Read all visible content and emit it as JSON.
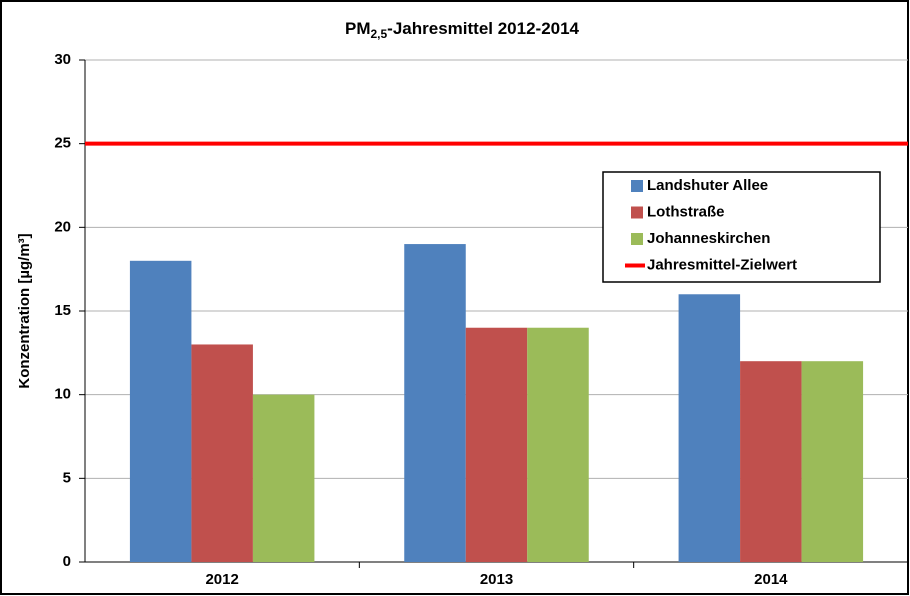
{
  "chart_data": {
    "type": "bar",
    "title": [
      "PM",
      "2,5",
      "-Jahresmittel  2012-2014"
    ],
    "y_label": "Konzentration [µg/m³]",
    "categories": [
      "2012",
      "2013",
      "2014"
    ],
    "series": [
      {
        "name": "Landshuter Allee",
        "color": "#4f81bd",
        "values": [
          18,
          19,
          16
        ]
      },
      {
        "name": "Lothstraße",
        "color": "#c0504d",
        "values": [
          13,
          14,
          12
        ]
      },
      {
        "name": "Johanneskirchen",
        "color": "#9bbb59",
        "values": [
          10,
          14,
          12
        ]
      }
    ],
    "reference_lines": [
      {
        "name": "Jahresmittel-Zielwert",
        "color": "#ff0000",
        "value": 25
      }
    ],
    "ylim": [
      0,
      30
    ],
    "yticks": [
      0,
      5,
      10,
      15,
      20,
      25,
      30
    ],
    "grid": true,
    "legend": "upper right"
  }
}
